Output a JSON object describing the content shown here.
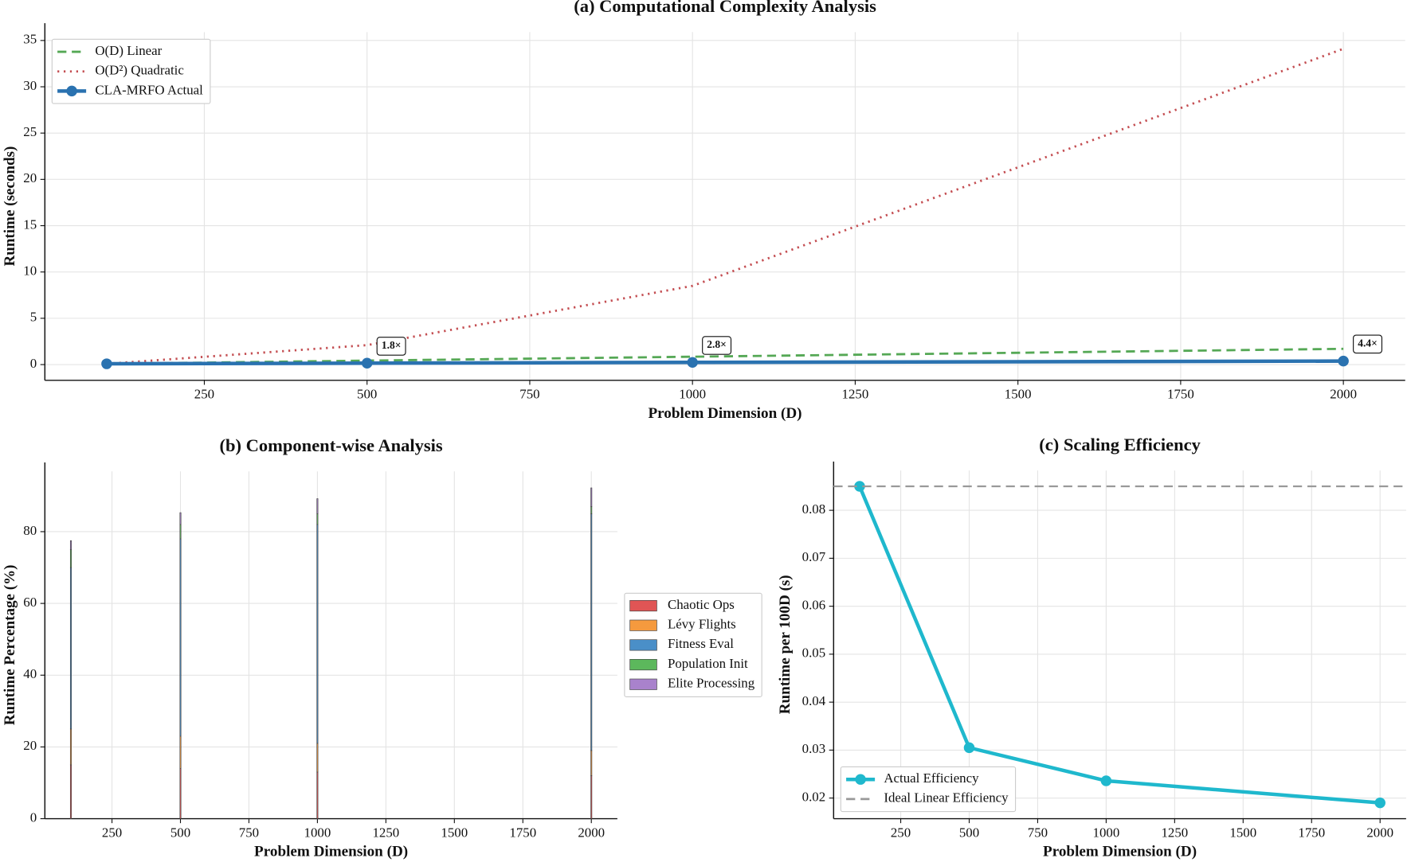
{
  "chart_data": [
    {
      "type": "line",
      "title": "(a) Computational Complexity Analysis",
      "xlabel": "Problem Dimension (D)",
      "ylabel": "Runtime (seconds)",
      "x": [
        100,
        500,
        1000,
        2000
      ],
      "xlim": [
        5,
        2095
      ],
      "xticks": [
        250,
        500,
        750,
        1000,
        1250,
        1500,
        1750,
        2000
      ],
      "ylim": [
        -1.7,
        35.9
      ],
      "yticks": [
        0,
        5,
        10,
        15,
        20,
        25,
        30,
        35
      ],
      "grid": true,
      "legend": "upper left",
      "series": [
        {
          "name": "O(D) Linear",
          "color": "#55a855",
          "style": "dashed",
          "values": [
            0.085,
            0.43,
            0.85,
            1.7
          ]
        },
        {
          "name": "O(D²) Quadratic",
          "color": "#c44e52",
          "style": "dotted",
          "values": [
            0.085,
            2.1,
            8.5,
            34.1
          ]
        },
        {
          "name": "CLA-MRFO Actual",
          "color": "#2a72b0",
          "style": "solid",
          "marker": true,
          "values": [
            0.085,
            0.153,
            0.236,
            0.38
          ]
        }
      ],
      "annotations": [
        {
          "text": "1.8×",
          "x": 500
        },
        {
          "text": "2.8×",
          "x": 1000
        },
        {
          "text": "4.4×",
          "x": 2000
        }
      ]
    },
    {
      "type": "bar",
      "title": "(b) Component-wise Analysis",
      "xlabel": "Problem Dimension (D)",
      "ylabel": "Runtime Percentage (%)",
      "x": [
        100,
        500,
        1000,
        2000
      ],
      "stacked": true,
      "xlim": [
        5,
        2095
      ],
      "xticks": [
        250,
        500,
        750,
        1000,
        1250,
        1500,
        1750,
        2000
      ],
      "ylim": [
        0,
        96.8
      ],
      "yticks": [
        0,
        20,
        40,
        60,
        80
      ],
      "grid": true,
      "legend": "outside right",
      "series": [
        {
          "name": "Chaotic Ops",
          "color": "#e05555",
          "values": [
            15,
            14,
            13,
            12
          ]
        },
        {
          "name": "Lévy Flights",
          "color": "#f59a3e",
          "values": [
            10,
            9,
            8,
            7
          ]
        },
        {
          "name": "Fitness Eval",
          "color": "#4a8fc8",
          "values": [
            45,
            55,
            61,
            66
          ]
        },
        {
          "name": "Population Init",
          "color": "#5cb85c",
          "values": [
            5,
            4,
            3,
            2
          ]
        },
        {
          "name": "Elite Processing",
          "color": "#a982cc",
          "values": [
            2.5,
            3.3,
            4.2,
            5.2
          ]
        }
      ]
    },
    {
      "type": "line",
      "title": "(c) Scaling Efficiency",
      "xlabel": "Problem Dimension (D)",
      "ylabel": "Runtime per 100D (s)",
      "x": [
        100,
        500,
        1000,
        2000
      ],
      "xlim": [
        5,
        2095
      ],
      "xticks": [
        250,
        500,
        750,
        1000,
        1250,
        1500,
        1750,
        2000
      ],
      "ylim": [
        0.0157,
        0.0883
      ],
      "yticks": [
        0.02,
        0.03,
        0.04,
        0.05,
        0.06,
        0.07,
        0.08
      ],
      "grid": true,
      "legend": "lower left",
      "series": [
        {
          "name": "Actual Efficiency",
          "color": "#1fb8cd",
          "style": "solid",
          "marker": true,
          "values": [
            0.085,
            0.0305,
            0.0236,
            0.019
          ]
        },
        {
          "name": "Ideal Linear Efficiency",
          "color": "#999999",
          "style": "dashed",
          "hline": 0.085
        }
      ]
    }
  ]
}
